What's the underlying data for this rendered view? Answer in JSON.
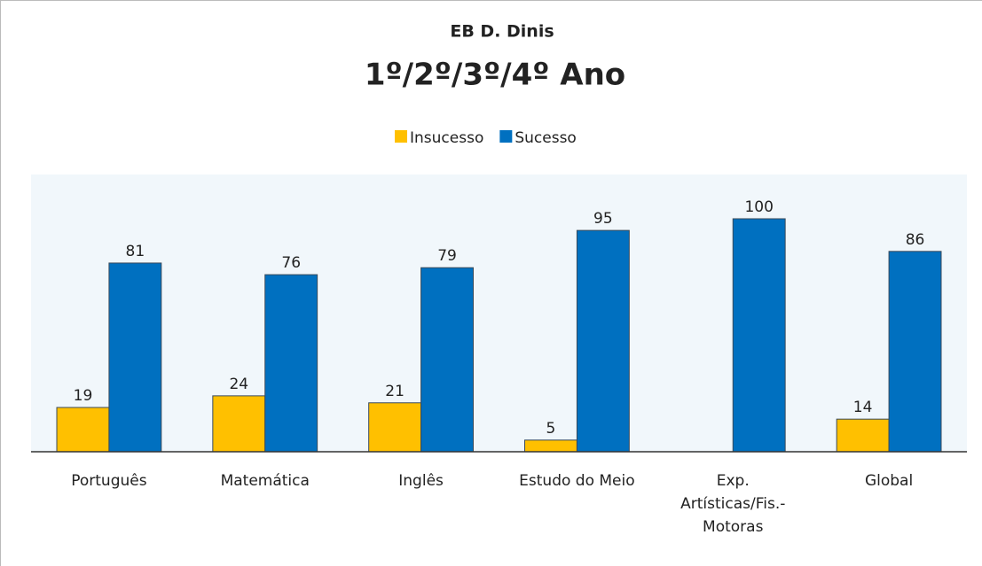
{
  "chart_data": {
    "type": "bar",
    "title": "EB D. Dinis",
    "subtitle": "1º/2º/3º/4º Ano",
    "categories": [
      "Português",
      "Matemática",
      "Inglês",
      "Estudo do Meio",
      "Exp. Artísticas/Fis.-Motoras",
      "Global"
    ],
    "series": [
      {
        "name": "Insucesso",
        "color": "#FFC000",
        "values": [
          19,
          24,
          21,
          5,
          0,
          14
        ]
      },
      {
        "name": "Sucesso",
        "color": "#0070C0",
        "values": [
          81,
          76,
          79,
          95,
          100,
          86
        ]
      }
    ],
    "ylim": [
      0,
      119
    ],
    "legend": "top"
  }
}
